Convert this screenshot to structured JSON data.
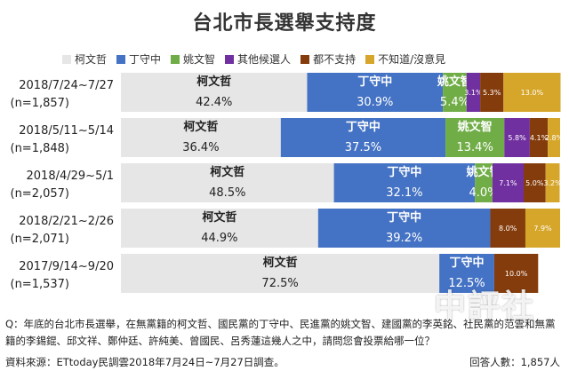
{
  "chart_data": {
    "type": "bar",
    "orientation": "horizontal",
    "stacked": true,
    "title": "台北市長選舉支持度",
    "xlim": [
      0,
      100
    ],
    "legend_position": "top",
    "categories": [
      {
        "date": "2018/7/24~7/27",
        "n": "(n=1,857)"
      },
      {
        "date": "2018/5/11~5/14",
        "n": "(n=1,848)"
      },
      {
        "date": "2018/4/29~5/1",
        "n": "(n=2,057)"
      },
      {
        "date": "2018/2/21~2/26",
        "n": "(n=2,071)"
      },
      {
        "date": "2017/9/14~9/20",
        "n": "(n=1,537)"
      }
    ],
    "series": [
      {
        "name": "柯文哲",
        "color": "#e6e6e6",
        "label_color": "#222222",
        "label_style": "big",
        "values": [
          42.4,
          36.4,
          48.5,
          44.9,
          72.5
        ],
        "labels": [
          "42.4%",
          "36.4%",
          "48.5%",
          "44.9%",
          "72.5%"
        ]
      },
      {
        "name": "丁守中",
        "color": "#4472c4",
        "label_color": "#ffffff",
        "label_style": "big",
        "values": [
          30.9,
          37.5,
          32.1,
          39.2,
          12.5
        ],
        "labels": [
          "30.9%",
          "37.5%",
          "32.1%",
          "39.2%",
          "12.5%"
        ]
      },
      {
        "name": "姚文智",
        "color": "#70ad47",
        "label_color": "#ffffff",
        "label_style": "big",
        "values": [
          5.4,
          13.4,
          4.0,
          null,
          null
        ],
        "labels": [
          "5.4%",
          "13.4%",
          "4.0%",
          "",
          ""
        ]
      },
      {
        "name": "其他候選人",
        "color": "#7030a0",
        "label_color": "#ffffff",
        "label_style": "small",
        "values": [
          3.1,
          5.8,
          7.1,
          null,
          null
        ],
        "labels": [
          "3.1%",
          "5.8%",
          "7.1%",
          "",
          ""
        ]
      },
      {
        "name": "都不支持",
        "color": "#843c0c",
        "label_color": "#ffffff",
        "label_style": "small",
        "values": [
          5.3,
          4.1,
          5.0,
          8.0,
          10.0
        ],
        "labels": [
          "5.3%",
          "4.1%",
          "5.0%",
          "8.0%",
          "10.0%"
        ]
      },
      {
        "name": "不知道/沒意見",
        "color": "#d6a62a",
        "label_color": "#ffffff",
        "label_style": "small",
        "values": [
          13.0,
          2.8,
          3.2,
          7.9,
          null
        ],
        "labels": [
          "13.0%",
          "2.8%",
          "3.2%",
          "7.9%",
          ""
        ]
      }
    ]
  },
  "footer": {
    "question": "Q：年底的台北市長選舉，在無黨籍的柯文哲、國民黨的丁守中、民進黨的姚文智、建國黨的李英銘、社民黨的范雲和無黨籍的李錫錕、邱文祥、鄭仲廷、許純美、曾國民、呂秀蓮這幾人之中，請問您會投票給哪一位？",
    "source": "資料來源：ETtoday民調雲2018年7月24日~7月27日調查。",
    "respondents": "回答人數：1,857人"
  },
  "watermark": "中評社"
}
